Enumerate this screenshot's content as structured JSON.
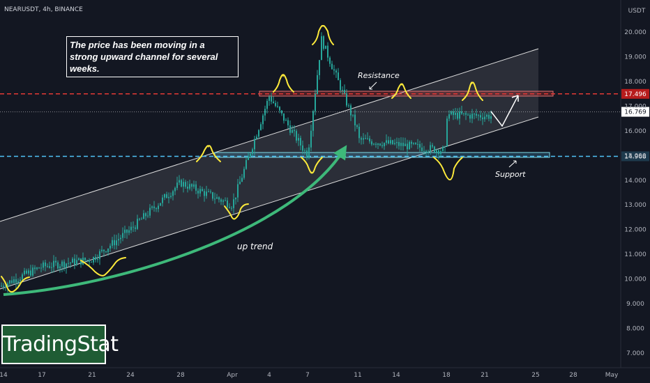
{
  "header": {
    "ticker": "NEARUSDT, 4h, BINANCE"
  },
  "note": "The price has been moving in a strong upward channel for several weeks.",
  "brand": {
    "name": "TradingStat"
  },
  "colors": {
    "background": "#131722",
    "up": "#26a69a",
    "down": "#26a69a",
    "resistance": "#e53935",
    "support": "#4fc3f7",
    "channel": "#ffffff",
    "trend_arrow": "#3eb97a",
    "swing_marks": "#ffeb3b"
  },
  "chart_data": {
    "type": "candlestick",
    "title": "NEARUSDT, 4h, BINANCE",
    "ylabel": "USDT",
    "ylim": [
      6.5,
      20.8
    ],
    "y_ticks": [
      "7.000",
      "8.000",
      "9.000",
      "10.000",
      "11.000",
      "12.000",
      "13.000",
      "14.000",
      "15.000",
      "16.000",
      "17.000",
      "18.000",
      "19.000",
      "20.000"
    ],
    "x_ticks": [
      "14",
      "17",
      "21",
      "24",
      "28",
      "Apr",
      "4",
      "7",
      "11",
      "14",
      "18",
      "21",
      "25",
      "28",
      "May"
    ],
    "levels": [
      {
        "name": "Resistance",
        "value": 17.496,
        "label": "17.496",
        "color": "#e53935"
      },
      {
        "name": "Support",
        "value": 14.968,
        "label": "14.968",
        "color": "#4fc3f7"
      },
      {
        "name": "last",
        "value": 16.769,
        "label": "16.769",
        "color": "#ffffff"
      }
    ],
    "annotations": [
      "Resistance",
      "Support",
      "up trend"
    ],
    "price_path": [
      [
        "14",
        9.7
      ],
      [
        "17",
        10.5
      ],
      [
        "21",
        10.8
      ],
      [
        "24",
        12.0
      ],
      [
        "28",
        13.9
      ],
      [
        "Apr",
        13.0
      ],
      [
        "4",
        17.4
      ],
      [
        "7",
        15.0
      ],
      [
        "7",
        19.7
      ],
      [
        "11",
        16.0
      ],
      [
        "14",
        17.4
      ],
      [
        "18",
        15.2
      ],
      [
        "21",
        17.0
      ],
      [
        "21",
        16.6
      ]
    ],
    "grid": false,
    "legend": "none"
  }
}
